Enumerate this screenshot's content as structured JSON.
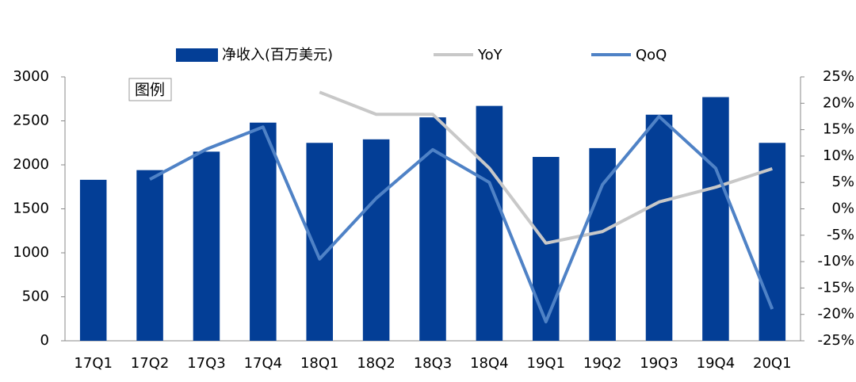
{
  "chart_data": {
    "type": "bar",
    "annotation": "图例",
    "categories": [
      "17Q1",
      "17Q2",
      "17Q3",
      "17Q4",
      "18Q1",
      "18Q2",
      "18Q3",
      "18Q4",
      "19Q1",
      "19Q2",
      "19Q3",
      "19Q4",
      "20Q1"
    ],
    "series": [
      {
        "name": "净收入(百万美元)",
        "type": "bar",
        "color": "#033e96",
        "values": [
          1830,
          1940,
          2150,
          2480,
          2250,
          2290,
          2540,
          2670,
          2090,
          2190,
          2570,
          2770,
          2250
        ]
      },
      {
        "name": "YoY",
        "type": "line",
        "axis": "y2",
        "color": "#c8c8c8",
        "values": [
          null,
          null,
          null,
          null,
          22.1,
          17.9,
          17.9,
          7.7,
          -6.5,
          -4.3,
          1.3,
          4.1,
          7.6
        ]
      },
      {
        "name": "QoQ",
        "type": "line",
        "axis": "y2",
        "color": "#4f82c6",
        "values": [
          null,
          5.6,
          11.3,
          15.5,
          -9.5,
          2.0,
          11.2,
          5.0,
          -21.4,
          4.6,
          17.5,
          7.7,
          -19.0
        ]
      }
    ],
    "ylim": [
      0,
      3000
    ],
    "yticks": [
      0,
      500,
      1000,
      1500,
      2000,
      2500,
      3000
    ],
    "y2lim": [
      -25,
      25
    ],
    "y2ticks": [
      {
        "value": -25,
        "label": "-25%"
      },
      {
        "value": -20,
        "label": "-20%"
      },
      {
        "value": -15,
        "label": "-15%"
      },
      {
        "value": -10,
        "label": "-10%"
      },
      {
        "value": -5,
        "label": "-5%"
      },
      {
        "value": 0,
        "label": "0%"
      },
      {
        "value": 5,
        "label": "5%"
      },
      {
        "value": 10,
        "label": "10%"
      },
      {
        "value": 15,
        "label": "15%"
      },
      {
        "value": 20,
        "label": "20%"
      },
      {
        "value": 25,
        "label": "25%"
      }
    ],
    "grid": false
  }
}
